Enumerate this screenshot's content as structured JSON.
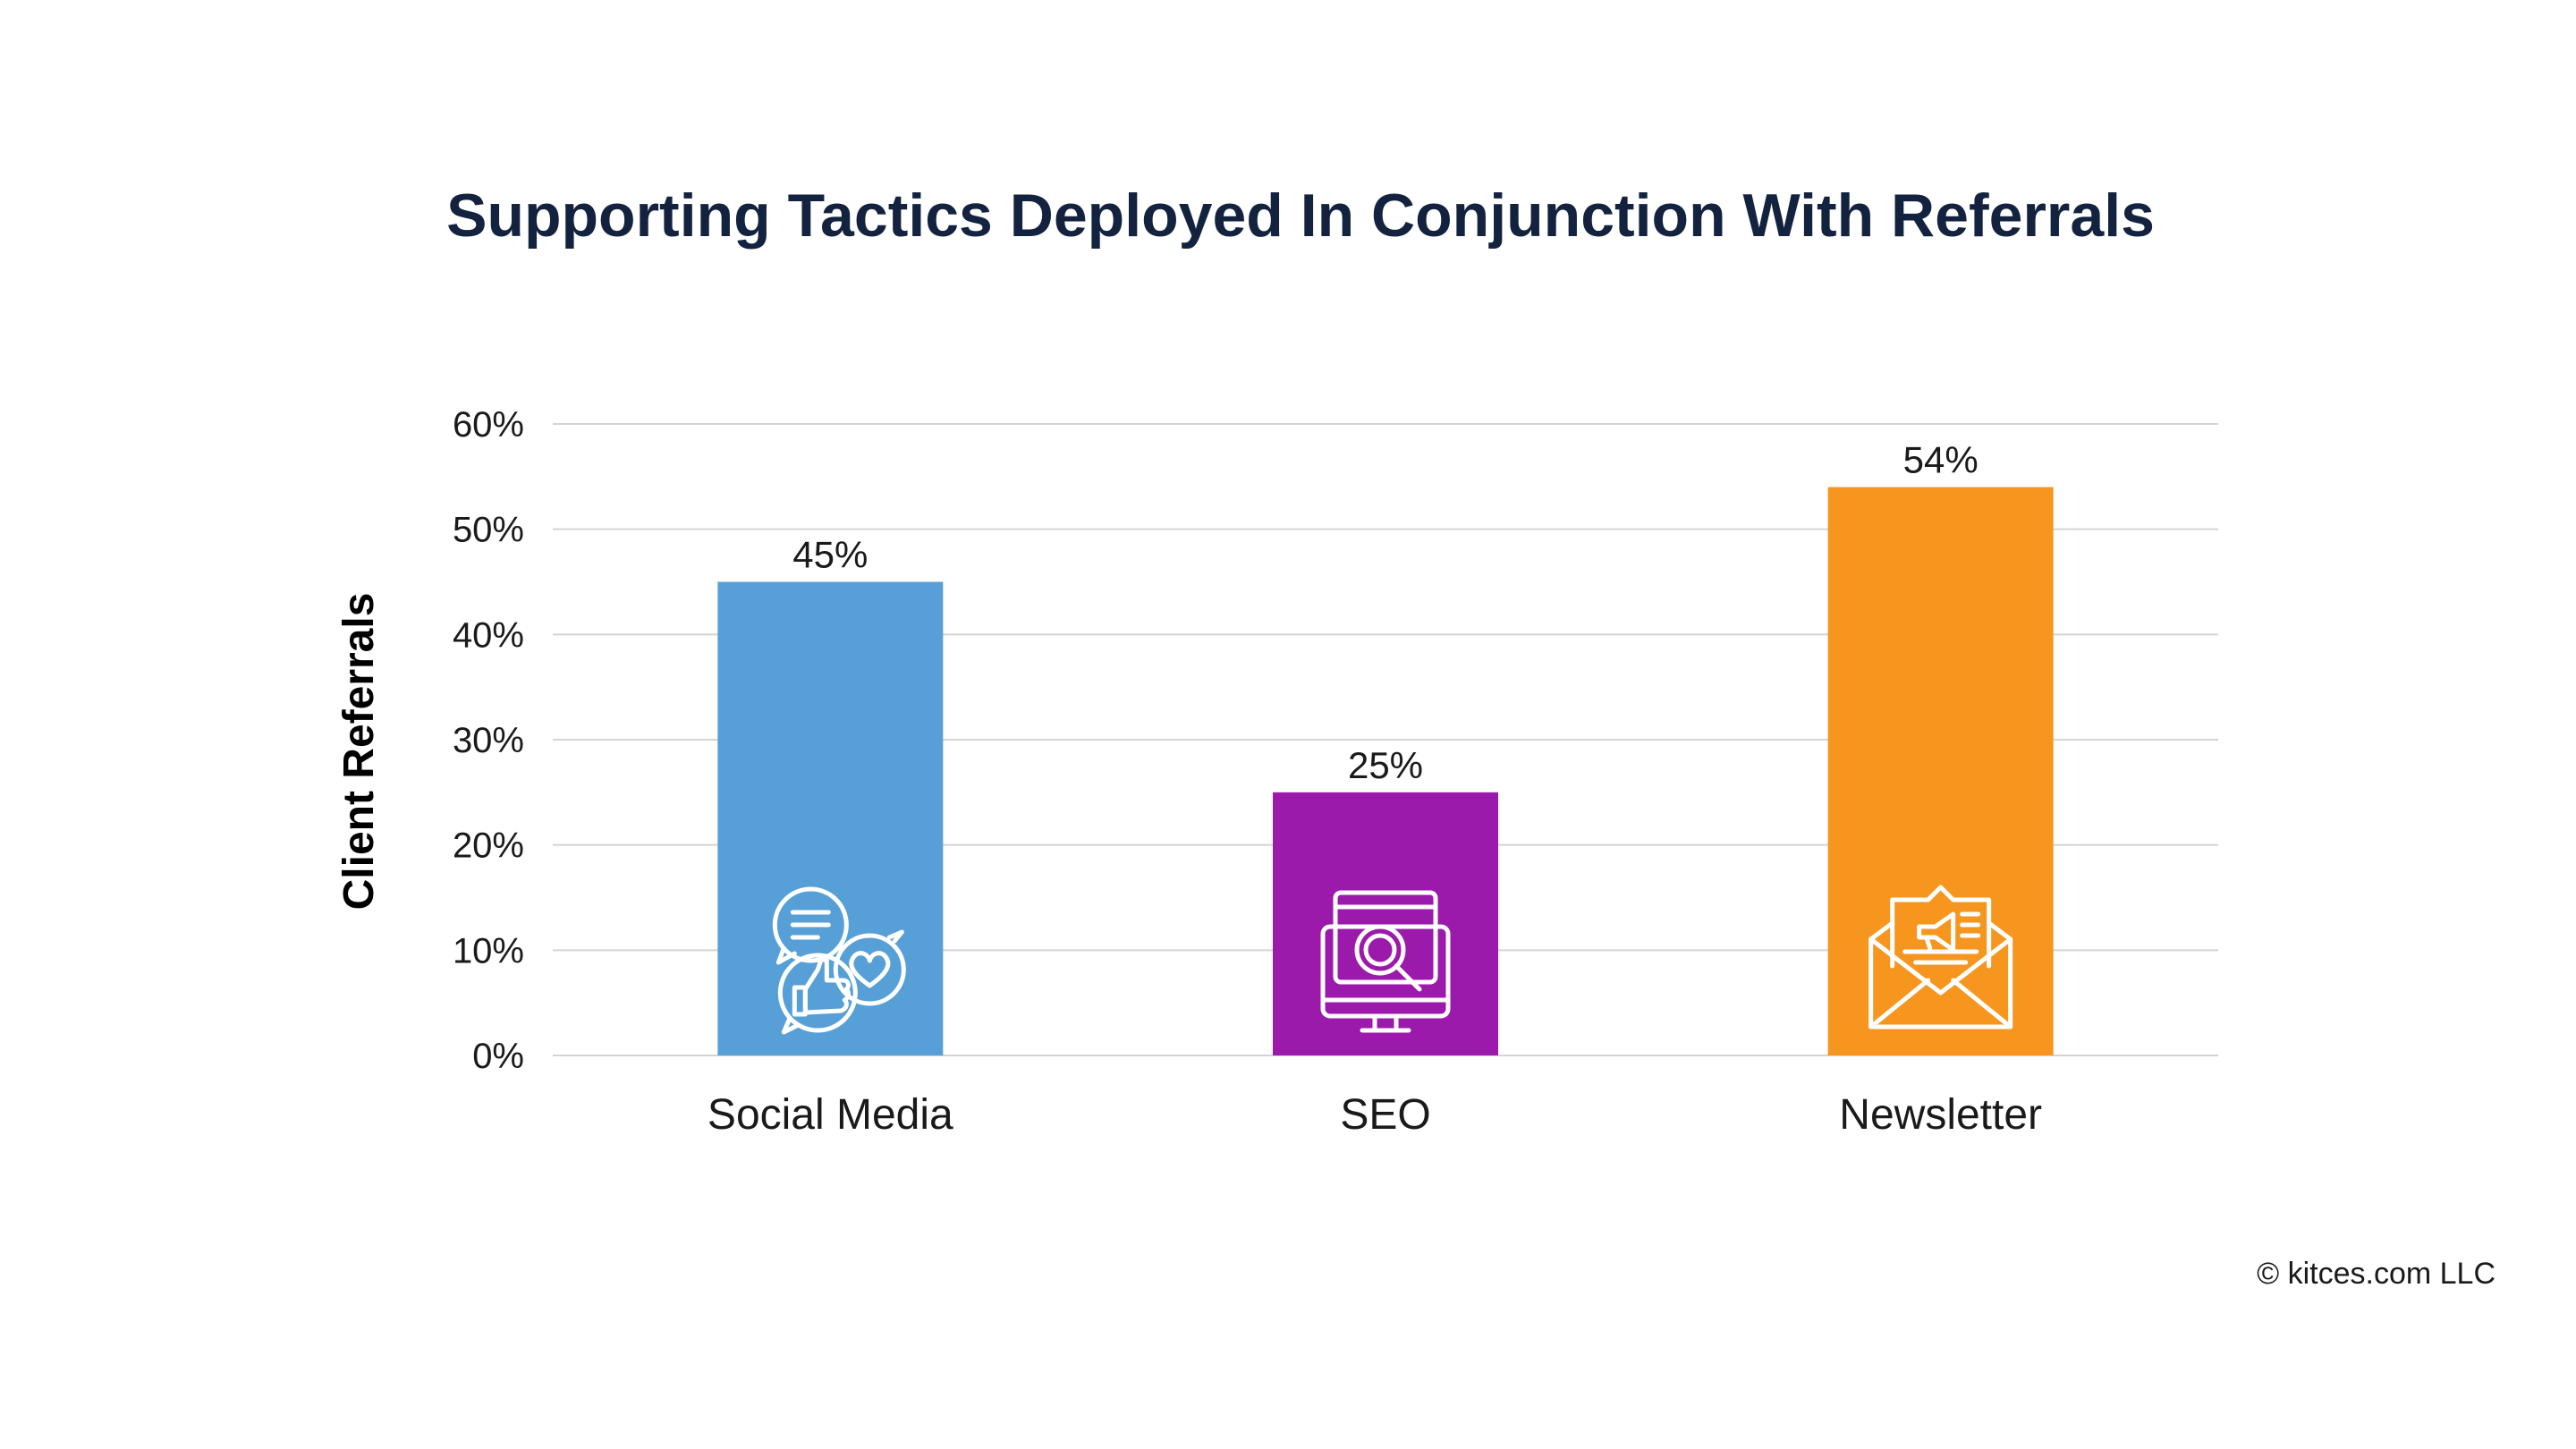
{
  "chart_data": {
    "type": "bar",
    "title": "Supporting Tactics Deployed In Conjunction With Referrals",
    "xlabel": "",
    "ylabel": "Client Referrals",
    "categories": [
      "Social Media",
      "SEO",
      "Newsletter"
    ],
    "values": [
      45,
      25,
      54
    ],
    "value_labels": [
      "45%",
      "25%",
      "54%"
    ],
    "ylim": [
      0,
      60
    ],
    "yticks": [
      0,
      10,
      20,
      30,
      40,
      50,
      60
    ],
    "ytick_labels": [
      "0%",
      "10%",
      "20%",
      "30%",
      "40%",
      "50%",
      "60%"
    ],
    "grid": true,
    "bar_colors": [
      "#57a0d7",
      "#9b1aab",
      "#f7961e"
    ],
    "bar_icons": [
      "social-chat-icon",
      "seo-monitor-icon",
      "newsletter-envelope-icon"
    ]
  },
  "credit": "© kitces.com LLC"
}
